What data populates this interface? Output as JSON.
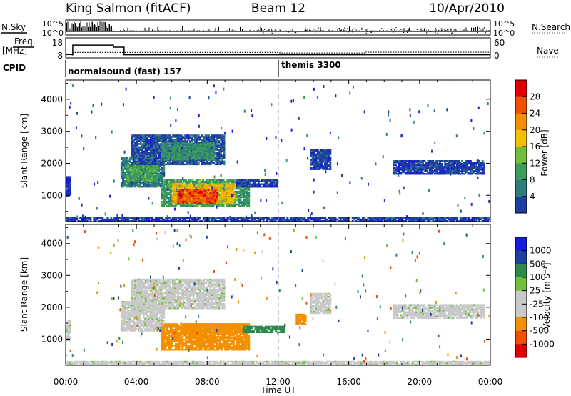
{
  "header": {
    "station": "King Salmon (fitACF)",
    "beam": "Beam 12",
    "date": "10/Apr/2010"
  },
  "side_labels": {
    "nsky": "N.Sky",
    "nsearch": "N.Search",
    "freq": "Freq.",
    "freq_unit": "[MHz]",
    "nave": "Nave",
    "cpid": "CPID"
  },
  "colors": {
    "power": [
      "#1a1adf",
      "#1f3f9f",
      "#2e7d7d",
      "#3c9c5a",
      "#6fbe3c",
      "#f0c000",
      "#f39000",
      "#f05000",
      "#e00000"
    ],
    "velocity": [
      "#e00000",
      "#f05000",
      "#f39000",
      "#c9c9c9",
      "#c9c9c9",
      "#6fbe3c",
      "#2e8a4a",
      "#1f3f9f",
      "#1a1adf"
    ]
  },
  "chart_data": [
    {
      "type": "line",
      "panel": "noise",
      "left_axis": {
        "label": "N.Sky",
        "ticks": [
          "10^5",
          "10^0"
        ]
      },
      "right_axis": {
        "label": "N.Search",
        "ticks": [
          "10^5",
          "10^0"
        ]
      },
      "xlim": [
        "00:00",
        "24:00"
      ]
    },
    {
      "type": "line",
      "panel": "frequency",
      "left_axis": {
        "label": "Freq. [MHz]",
        "ticks": [
          18,
          8
        ]
      },
      "right_axis": {
        "label": "Nave",
        "ticks": [
          60,
          0
        ]
      },
      "freq_steps_mhz": [
        {
          "start": 0.0,
          "end": 0.4,
          "value": 10.5
        },
        {
          "start": 0.4,
          "end": 2.7,
          "value": 18.2
        },
        {
          "start": 2.7,
          "end": 3.3,
          "value": 16.5
        },
        {
          "start": 3.3,
          "end": 24.0,
          "value": 10.3
        }
      ],
      "nave_steps": [
        {
          "start": 0.0,
          "end": 0.4,
          "value": 10
        },
        {
          "start": 0.4,
          "end": 12.1,
          "value": 27
        },
        {
          "start": 12.1,
          "end": 16.9,
          "value": 24
        },
        {
          "start": 16.9,
          "end": 24.0,
          "value": 28
        }
      ]
    },
    {
      "type": "table",
      "panel": "cpid",
      "segments": [
        {
          "start": "00:00",
          "label": "normalsound (fast) 157"
        },
        {
          "start": "12:00",
          "label": "themis 3300"
        }
      ]
    },
    {
      "type": "heatmap",
      "panel": "power",
      "ylabel": "Slant Range [km]",
      "ylim": [
        180,
        4600
      ],
      "yticks": [
        1000,
        2000,
        3000,
        4000
      ],
      "xlim_hours": [
        0,
        24
      ],
      "colorbar": {
        "label": "Power [dB]",
        "ticks": [
          4,
          8,
          12,
          16,
          20,
          24,
          28
        ],
        "range": [
          0,
          32
        ]
      },
      "regions": [
        {
          "t0": 0.0,
          "t1": 0.3,
          "r0": 950,
          "r1": 1600,
          "value": 4
        },
        {
          "t0": 3.1,
          "t1": 5.6,
          "r0": 1250,
          "r1": 2200,
          "value": 9
        },
        {
          "t0": 3.4,
          "t1": 5.2,
          "r0": 1450,
          "r1": 1950,
          "value": 13
        },
        {
          "t0": 3.7,
          "t1": 9.0,
          "r0": 1950,
          "r1": 2900,
          "value": 6
        },
        {
          "t0": 5.4,
          "t1": 8.4,
          "r0": 2100,
          "r1": 2650,
          "value": 11
        },
        {
          "t0": 5.4,
          "t1": 10.4,
          "r0": 650,
          "r1": 1500,
          "value": 12
        },
        {
          "t0": 6.0,
          "t1": 9.6,
          "r0": 720,
          "r1": 1380,
          "value": 20
        },
        {
          "t0": 6.3,
          "t1": 8.6,
          "r0": 740,
          "r1": 1200,
          "value": 27
        },
        {
          "t0": 9.6,
          "t1": 12.0,
          "r0": 1250,
          "r1": 1500,
          "value": 5
        },
        {
          "t0": 13.8,
          "t1": 15.0,
          "r0": 1800,
          "r1": 2450,
          "value": 5
        },
        {
          "t0": 18.5,
          "t1": 23.7,
          "r0": 1650,
          "r1": 2100,
          "value": 5
        },
        {
          "t0": 0.0,
          "t1": 24.0,
          "r0": 180,
          "r1": 320,
          "value": 5
        }
      ]
    },
    {
      "type": "heatmap",
      "panel": "velocity",
      "ylabel": "Slant Range [km]",
      "ylim": [
        180,
        4600
      ],
      "yticks": [
        1000,
        2000,
        3000,
        4000
      ],
      "xlabel": "Time UT",
      "xticks": [
        "00:00",
        "04:00",
        "08:00",
        "12:00",
        "16:00",
        "20:00",
        "00:00"
      ],
      "colorbar": {
        "label": "Velocity [m s⁻¹]",
        "ticks": [
          1000,
          500,
          100,
          25,
          -25,
          -100,
          -500,
          -1000
        ]
      },
      "regions": [
        {
          "t0": 0.0,
          "t1": 0.3,
          "r0": 950,
          "r1": 1600,
          "value": 0
        },
        {
          "t0": 3.1,
          "t1": 5.6,
          "r0": 1250,
          "r1": 2200,
          "value": 0
        },
        {
          "t0": 3.7,
          "t1": 9.0,
          "r0": 1950,
          "r1": 2900,
          "value": 0
        },
        {
          "t0": 5.4,
          "t1": 10.4,
          "r0": 650,
          "r1": 1500,
          "value": -150
        },
        {
          "t0": 6.5,
          "t1": 9.8,
          "r0": 1200,
          "r1": 1500,
          "value": -300
        },
        {
          "t0": 10.0,
          "t1": 12.4,
          "r0": 1200,
          "r1": 1420,
          "value": 150
        },
        {
          "t0": 13.0,
          "t1": 13.6,
          "r0": 1450,
          "r1": 1800,
          "value": -200
        },
        {
          "t0": 13.8,
          "t1": 15.0,
          "r0": 1800,
          "r1": 2450,
          "value": 0
        },
        {
          "t0": 18.5,
          "t1": 23.7,
          "r0": 1650,
          "r1": 2100,
          "value": 0
        },
        {
          "t0": 0.0,
          "t1": 24.0,
          "r0": 180,
          "r1": 320,
          "value": 0
        }
      ]
    }
  ]
}
